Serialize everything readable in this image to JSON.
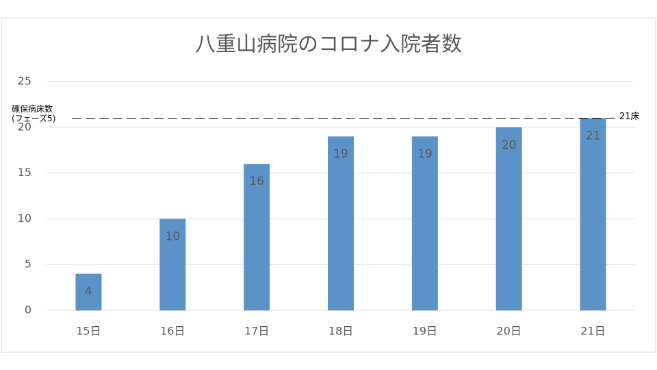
{
  "chart_data": {
    "type": "bar",
    "title": "八重山病院のコロナ入院者数",
    "categories": [
      "15日",
      "16日",
      "17日",
      "18日",
      "19日",
      "20日",
      "21日"
    ],
    "values": [
      4,
      10,
      16,
      19,
      19,
      20,
      21
    ],
    "color": "#5b93c8",
    "ylim": [
      0,
      25
    ],
    "yticks": [
      0,
      5,
      10,
      15,
      20,
      25
    ],
    "grid": true,
    "reference_line": {
      "value": 21,
      "label": [
        "確保病床数",
        "(フェーズ5)"
      ],
      "value_label": "21床"
    }
  }
}
